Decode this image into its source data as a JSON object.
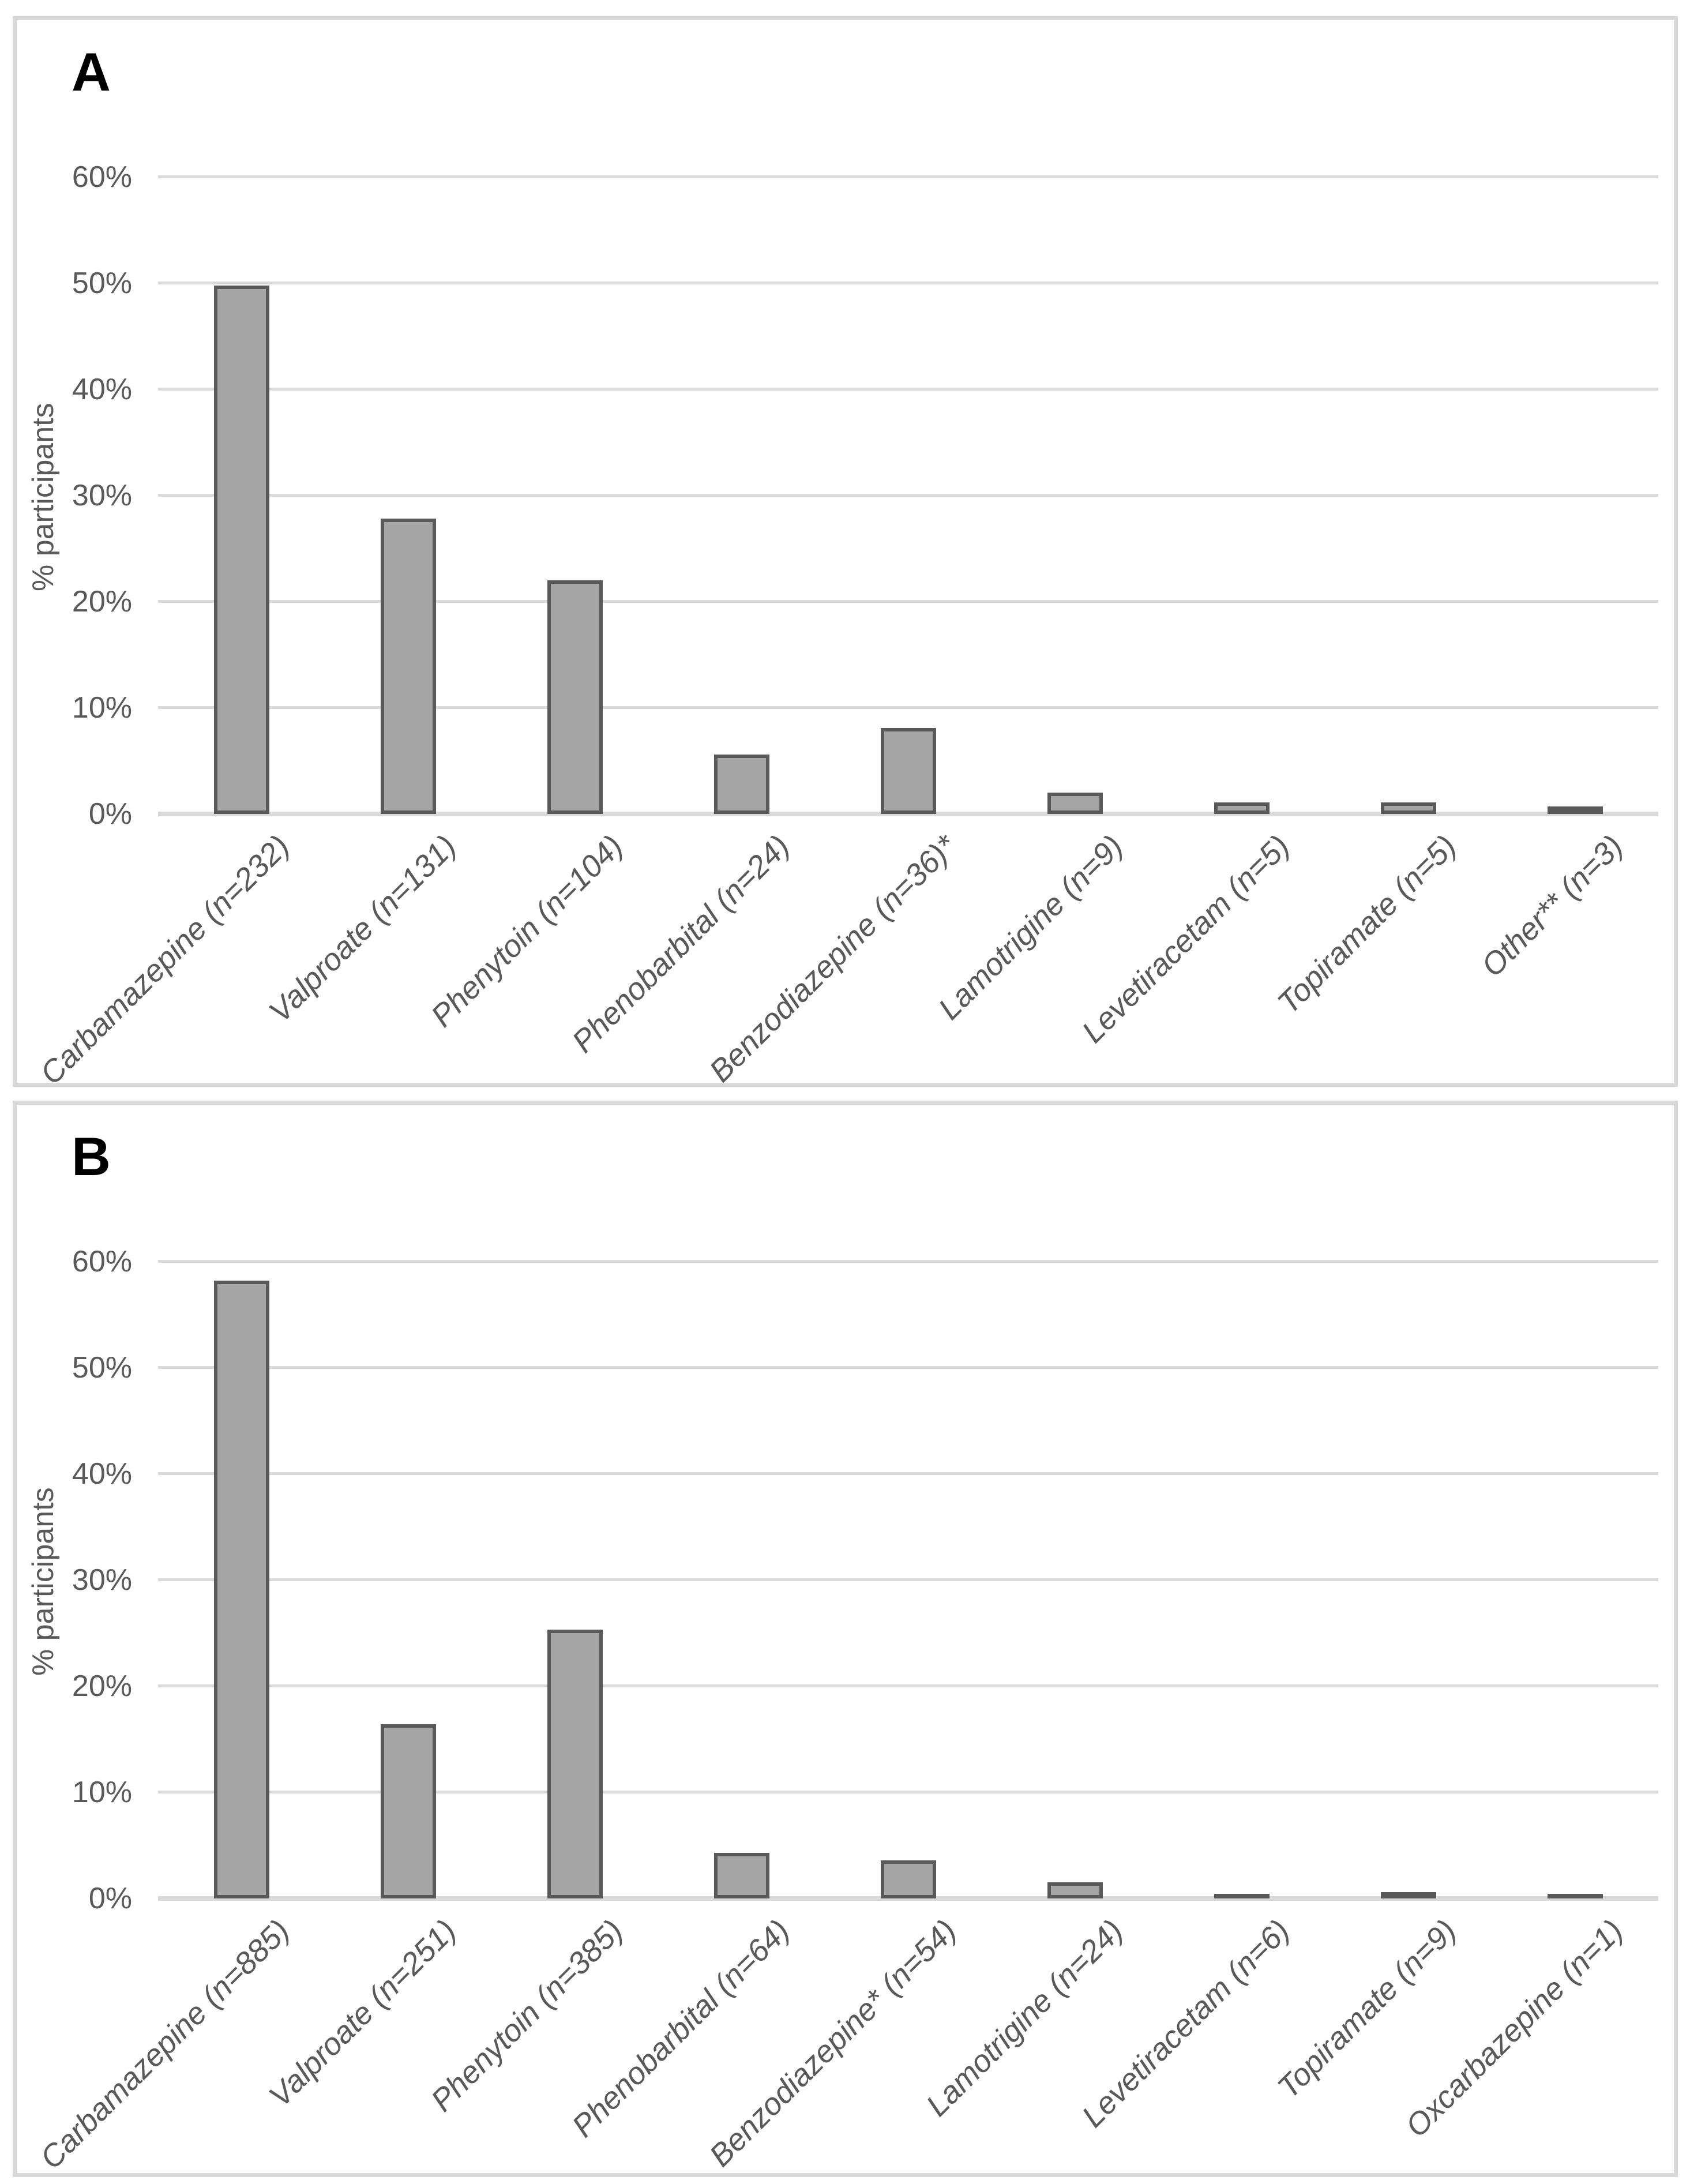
{
  "figure": {
    "kind": "two-panel bar figure",
    "background": "#ffffff",
    "panel_border_color": "#d9d9d9",
    "text_color": "#595959",
    "gridline_color": "#d9d9d9",
    "bar_fill_color": "#a6a6a6",
    "bar_border_color": "#595959"
  },
  "chart_data": [
    {
      "type": "bar",
      "label": "A",
      "ylabel": "% participants",
      "categories": [
        "Carbamazepine (n=232)",
        "Valproate (n=131)",
        "Phenytoin (n=104)",
        "Phenobarbital (n=24)",
        "Benzodiazepine (n=36)*",
        "Lamotrigine (n=9)",
        "Levetiracetam (n=5)",
        "Topiramate (n=5)",
        "Other** (n=3)"
      ],
      "values": [
        49.8,
        27.8,
        22.0,
        5.6,
        8.1,
        2.0,
        1.1,
        1.1,
        0.7
      ],
      "yticks": [
        0,
        10,
        20,
        30,
        40,
        50,
        60
      ],
      "ytick_labels": [
        "0%",
        "10%",
        "20%",
        "30%",
        "40%",
        "50%",
        "60%"
      ],
      "ylim": [
        0,
        65
      ],
      "grid": true,
      "legend": null,
      "bar_fill": "#a6a6a6",
      "bar_border": "#595959"
    },
    {
      "type": "bar",
      "label": "B",
      "ylabel": "% participants",
      "categories": [
        "Carbamazepine (n=885)",
        "Valproate (n=251)",
        "Phenytoin (n=385)",
        "Phenobarbital (n=64)",
        "Benzodiazepine* (n=54)",
        "Lamotrigine (n=24)",
        "Levetiracetam (n=6)",
        "Topiramate (n=9)",
        "Oxcarbazepine (n=1)"
      ],
      "values": [
        58.2,
        16.4,
        25.3,
        4.3,
        3.6,
        1.5,
        0.4,
        0.6,
        0.15
      ],
      "yticks": [
        0,
        10,
        20,
        30,
        40,
        50,
        60
      ],
      "ytick_labels": [
        "0%",
        "10%",
        "20%",
        "30%",
        "40%",
        "50%",
        "60%"
      ],
      "ylim": [
        0,
        65
      ],
      "grid": true,
      "legend": null,
      "bar_fill": "#a6a6a6",
      "bar_border": "#595959"
    }
  ]
}
